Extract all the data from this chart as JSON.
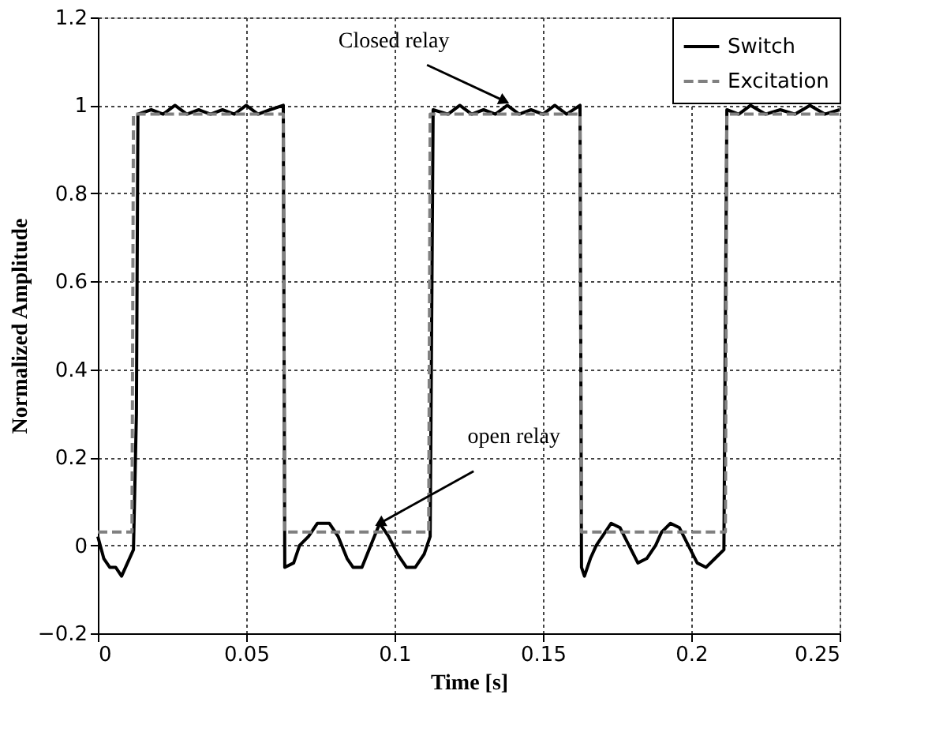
{
  "chart_data": {
    "type": "line",
    "xlabel": "Time [s]",
    "ylabel": "Normalized Amplitude",
    "xlim": [
      0,
      0.25
    ],
    "ylim": [
      -0.2,
      1.2
    ],
    "xticks": [
      0,
      0.05,
      0.1,
      0.15,
      0.2,
      0.25
    ],
    "yticks": [
      -0.2,
      0,
      0.2,
      0.4,
      0.6,
      0.8,
      1,
      1.2
    ],
    "grid": true,
    "legend": "top right",
    "marker": "none",
    "series": [
      {
        "name": "Switch",
        "color": "#000000",
        "line_style": "solid",
        "x": [
          0,
          0.002,
          0.004,
          0.006,
          0.008,
          0.01,
          0.012,
          0.013,
          0.0135,
          0.018,
          0.022,
          0.026,
          0.03,
          0.034,
          0.038,
          0.042,
          0.046,
          0.05,
          0.054,
          0.058,
          0.0625,
          0.063,
          0.066,
          0.068,
          0.071,
          0.074,
          0.078,
          0.081,
          0.084,
          0.086,
          0.089,
          0.092,
          0.095,
          0.098,
          0.101,
          0.104,
          0.107,
          0.11,
          0.112,
          0.1125,
          0.113,
          0.118,
          0.122,
          0.126,
          0.13,
          0.134,
          0.138,
          0.142,
          0.146,
          0.15,
          0.154,
          0.158,
          0.1625,
          0.163,
          0.164,
          0.166,
          0.168,
          0.171,
          0.173,
          0.176,
          0.179,
          0.182,
          0.185,
          0.188,
          0.19,
          0.193,
          0.196,
          0.199,
          0.202,
          0.205,
          0.208,
          0.211,
          0.2115,
          0.212,
          0.216,
          0.22,
          0.225,
          0.23,
          0.235,
          0.24,
          0.245,
          0.25
        ],
        "values": [
          0.02,
          -0.03,
          -0.05,
          -0.05,
          -0.07,
          -0.04,
          -0.01,
          0.3,
          0.98,
          0.99,
          0.98,
          1.0,
          0.98,
          0.99,
          0.98,
          0.99,
          0.98,
          1.0,
          0.98,
          0.99,
          1.0,
          -0.05,
          -0.04,
          0.0,
          0.02,
          0.05,
          0.05,
          0.02,
          -0.03,
          -0.05,
          -0.05,
          0.0,
          0.05,
          0.02,
          -0.02,
          -0.05,
          -0.05,
          -0.02,
          0.02,
          0.5,
          0.99,
          0.98,
          1.0,
          0.98,
          0.99,
          0.98,
          1.0,
          0.98,
          0.99,
          0.98,
          1.0,
          0.98,
          1.0,
          -0.05,
          -0.07,
          -0.03,
          0.0,
          0.03,
          0.05,
          0.04,
          0.0,
          -0.04,
          -0.03,
          0.0,
          0.03,
          0.05,
          0.04,
          0.0,
          -0.04,
          -0.05,
          -0.03,
          -0.01,
          0.5,
          0.99,
          0.98,
          1.0,
          0.98,
          0.99,
          0.98,
          1.0,
          0.98,
          0.99
        ]
      },
      {
        "name": "Excitation",
        "color": "#808080",
        "line_style": "dashed",
        "x": [
          0,
          0.0115,
          0.012,
          0.0625,
          0.063,
          0.1115,
          0.112,
          0.1625,
          0.163,
          0.2115,
          0.212,
          0.25
        ],
        "values": [
          0.03,
          0.03,
          0.98,
          0.98,
          0.03,
          0.03,
          0.98,
          0.98,
          0.03,
          0.03,
          0.98,
          0.98
        ]
      }
    ],
    "annotations": [
      {
        "text": "Closed relay",
        "x": 0.137,
        "y": 1.01
      },
      {
        "text": "open relay",
        "x": 0.095,
        "y": 0.05
      }
    ]
  }
}
